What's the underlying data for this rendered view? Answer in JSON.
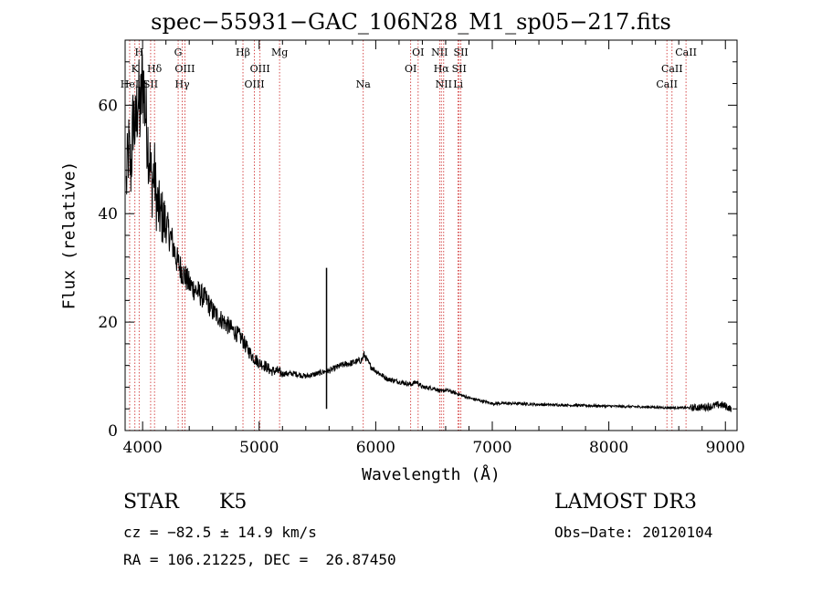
{
  "chart_data": {
    "type": "line",
    "title": "spec−55931−GAC_106N28_M1_sp05−217.fits",
    "xlabel": "Wavelength (Å)",
    "ylabel": "Flux (relative)",
    "xlim": [
      3850,
      9100
    ],
    "ylim": [
      0,
      72
    ],
    "xticks": [
      4000,
      5000,
      6000,
      7000,
      8000,
      9000
    ],
    "yticks": [
      0,
      20,
      40,
      60
    ],
    "series": [
      {
        "name": "spectrum",
        "x": [
          3860,
          3880,
          3900,
          3920,
          3940,
          3960,
          3980,
          4000,
          4020,
          4040,
          4060,
          4080,
          4100,
          4120,
          4150,
          4200,
          4250,
          4300,
          4350,
          4400,
          4450,
          4500,
          4550,
          4600,
          4650,
          4700,
          4750,
          4800,
          4850,
          4900,
          4950,
          5000,
          5050,
          5100,
          5150,
          5200,
          5300,
          5400,
          5500,
          5580,
          5600,
          5650,
          5700,
          5800,
          5880,
          5900,
          5950,
          6000,
          6100,
          6200,
          6300,
          6350,
          6400,
          6500,
          6563,
          6600,
          6700,
          6800,
          6900,
          7000,
          7200,
          7400,
          7600,
          7800,
          8000,
          8200,
          8400,
          8500,
          8600,
          8700,
          8800,
          8900,
          8950,
          9000,
          9050
        ],
        "y": [
          45,
          52,
          48,
          58,
          55,
          62,
          58,
          66,
          60,
          55,
          50,
          45,
          48,
          42,
          40,
          38,
          35,
          31,
          29,
          27,
          26,
          25,
          24,
          22,
          21,
          20,
          19,
          18,
          17,
          15,
          13.5,
          12.5,
          12,
          11,
          11,
          10.5,
          10.5,
          10,
          10.5,
          11,
          11,
          11.5,
          12,
          12.5,
          13,
          14,
          12,
          11,
          9.5,
          9,
          8.5,
          9,
          8,
          7.8,
          7.2,
          7.5,
          6.8,
          6,
          5.5,
          5,
          5,
          4.8,
          4.7,
          4.6,
          4.5,
          4.4,
          4.3,
          4.2,
          4.2,
          4.2,
          4.3,
          4.5,
          4.8,
          4.5,
          4
        ]
      }
    ],
    "features": [
      {
        "x": 5578,
        "y_low": 4,
        "y_high": 30,
        "note": "spike"
      }
    ],
    "line_markers": [
      {
        "label": "H",
        "x": 3970,
        "row": 0
      },
      {
        "label": "K",
        "x": 3934,
        "row": 1
      },
      {
        "label": "Hδ",
        "x": 4102,
        "row": 1
      },
      {
        "label": "HeI",
        "x": 3889,
        "row": 2
      },
      {
        "label": "SII",
        "x": 4069,
        "row": 2
      },
      {
        "label": "G",
        "x": 4305,
        "row": 0
      },
      {
        "label": "OIII",
        "x": 4363,
        "row": 1
      },
      {
        "label": "Hγ",
        "x": 4340,
        "row": 2
      },
      {
        "label": "Hβ",
        "x": 4861,
        "row": 0
      },
      {
        "label": "OIII",
        "x": 5007,
        "row": 1
      },
      {
        "label": "OIII",
        "x": 4959,
        "row": 2
      },
      {
        "label": "Mg",
        "x": 5175,
        "row": 0
      },
      {
        "label": "Na",
        "x": 5893,
        "row": 2
      },
      {
        "label": "OI",
        "x": 6364,
        "row": 0
      },
      {
        "label": "OI",
        "x": 6300,
        "row": 1
      },
      {
        "label": "NII",
        "x": 6548,
        "row": 0
      },
      {
        "label": "SII",
        "x": 6731,
        "row": 0
      },
      {
        "label": "Hα",
        "x": 6563,
        "row": 1
      },
      {
        "label": "SII",
        "x": 6716,
        "row": 1
      },
      {
        "label": "NII",
        "x": 6583,
        "row": 2
      },
      {
        "label": "Li",
        "x": 6707,
        "row": 2
      },
      {
        "label": "CaII",
        "x": 8662,
        "row": 0
      },
      {
        "label": "CaII",
        "x": 8542,
        "row": 1
      },
      {
        "label": "CaII",
        "x": 8498,
        "row": 2
      }
    ]
  },
  "info": {
    "class": "STAR",
    "subclass": "K5",
    "survey": "LAMOST DR3",
    "cz": "cz = −82.5 ± 14.9 km/s",
    "obs_date": "Obs−Date: 20120104",
    "radec": "RA = 106.21225, DEC =  26.87450"
  },
  "colors": {
    "line": "#000000",
    "marker": "#cc2222"
  }
}
